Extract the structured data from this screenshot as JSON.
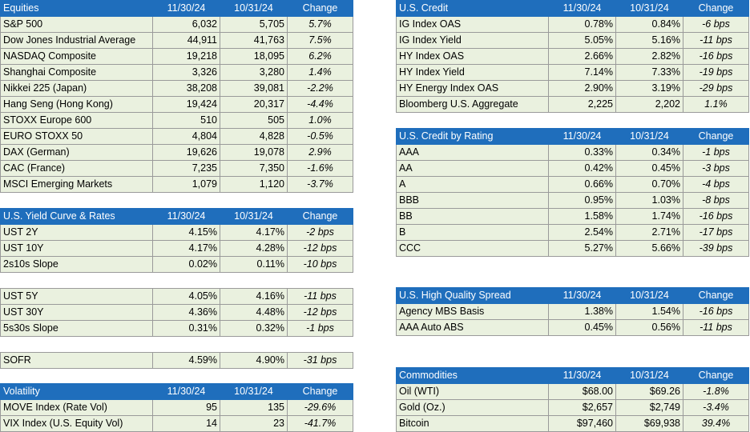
{
  "equities": {
    "header": [
      "Equities",
      "11/30/24",
      "10/31/24",
      "Change"
    ],
    "rows": [
      [
        "S&P 500",
        "6,032",
        "5,705",
        "5.7%"
      ],
      [
        "Dow Jones Industrial Average",
        "44,911",
        "41,763",
        "7.5%"
      ],
      [
        "NASDAQ Composite",
        "19,218",
        "18,095",
        "6.2%"
      ],
      [
        "Shanghai Composite",
        "3,326",
        "3,280",
        "1.4%"
      ],
      [
        "Nikkei 225 (Japan)",
        "38,208",
        "39,081",
        "-2.2%"
      ],
      [
        "Hang Seng (Hong Kong)",
        "19,424",
        "20,317",
        "-4.4%"
      ],
      [
        "STOXX Europe 600",
        "510",
        "505",
        "1.0%"
      ],
      [
        "EURO STOXX 50",
        "4,804",
        "4,828",
        "-0.5%"
      ],
      [
        "DAX (German)",
        "19,626",
        "19,078",
        "2.9%"
      ],
      [
        "CAC (France)",
        "7,235",
        "7,350",
        "-1.6%"
      ],
      [
        "MSCI Emerging Markets",
        "1,079",
        "1,120",
        "-3.7%"
      ]
    ]
  },
  "yield_curve": {
    "header": [
      "U.S. Yield Curve & Rates",
      "11/30/24",
      "10/31/24",
      "Change"
    ],
    "rows": [
      [
        "UST 2Y",
        "4.15%",
        "4.17%",
        "-2 bps"
      ],
      [
        "UST 10Y",
        "4.17%",
        "4.28%",
        "-12 bps"
      ],
      [
        "2s10s Slope",
        "0.02%",
        "0.11%",
        "-10 bps"
      ]
    ]
  },
  "yield_curve_2": {
    "rows": [
      [
        "UST 5Y",
        "4.05%",
        "4.16%",
        "-11 bps"
      ],
      [
        "UST 30Y",
        "4.36%",
        "4.48%",
        "-12 bps"
      ],
      [
        "5s30s Slope",
        "0.31%",
        "0.32%",
        "-1 bps"
      ]
    ]
  },
  "sofr": {
    "rows": [
      [
        "SOFR",
        "4.59%",
        "4.90%",
        "-31 bps"
      ]
    ]
  },
  "volatility": {
    "header": [
      "Volatility",
      "11/30/24",
      "10/31/24",
      "Change"
    ],
    "rows": [
      [
        "MOVE Index (Rate Vol)",
        "95",
        "135",
        "-29.6%"
      ],
      [
        "VIX Index (U.S. Equity Vol)",
        "14",
        "23",
        "-41.7%"
      ]
    ]
  },
  "us_credit": {
    "header": [
      "U.S. Credit",
      "11/30/24",
      "10/31/24",
      "Change"
    ],
    "rows": [
      [
        "IG Index OAS",
        "0.78%",
        "0.84%",
        "-6 bps"
      ],
      [
        "IG Index Yield",
        "5.05%",
        "5.16%",
        "-11 bps"
      ],
      [
        "HY Index OAS",
        "2.66%",
        "2.82%",
        "-16 bps"
      ],
      [
        "HY Index Yield",
        "7.14%",
        "7.33%",
        "-19 bps"
      ],
      [
        "HY Energy Index OAS",
        "2.90%",
        "3.19%",
        "-29 bps"
      ],
      [
        "Bloomberg U.S. Aggregate",
        "2,225",
        "2,202",
        "1.1%"
      ]
    ]
  },
  "credit_by_rating": {
    "header": [
      "U.S. Credit by Rating",
      "11/30/24",
      "10/31/24",
      "Change"
    ],
    "rows": [
      [
        "AAA",
        "0.33%",
        "0.34%",
        "-1 bps"
      ],
      [
        "AA",
        "0.42%",
        "0.45%",
        "-3 bps"
      ],
      [
        "A",
        "0.66%",
        "0.70%",
        "-4 bps"
      ],
      [
        "BBB",
        "0.95%",
        "1.03%",
        "-8 bps"
      ],
      [
        "BB",
        "1.58%",
        "1.74%",
        "-16 bps"
      ],
      [
        "B",
        "2.54%",
        "2.71%",
        "-17 bps"
      ],
      [
        "CCC",
        "5.27%",
        "5.66%",
        "-39 bps"
      ]
    ]
  },
  "high_quality_spread": {
    "header": [
      "U.S. High Quality Spread",
      "11/30/24",
      "10/31/24",
      "Change"
    ],
    "rows": [
      [
        "Agency MBS Basis",
        "1.38%",
        "1.54%",
        "-16 bps"
      ],
      [
        "AAA Auto ABS",
        "0.45%",
        "0.56%",
        "-11 bps"
      ]
    ]
  },
  "commodities": {
    "header": [
      "Commodities",
      "11/30/24",
      "10/31/24",
      "Change"
    ],
    "rows": [
      [
        "Oil (WTI)",
        "$68.00",
        "$69.26",
        "-1.8%"
      ],
      [
        "Gold (Oz.)",
        "$2,657",
        "$2,749",
        "-3.4%"
      ],
      [
        "Bitcoin",
        "$97,460",
        "$69,938",
        "39.4%"
      ]
    ]
  }
}
